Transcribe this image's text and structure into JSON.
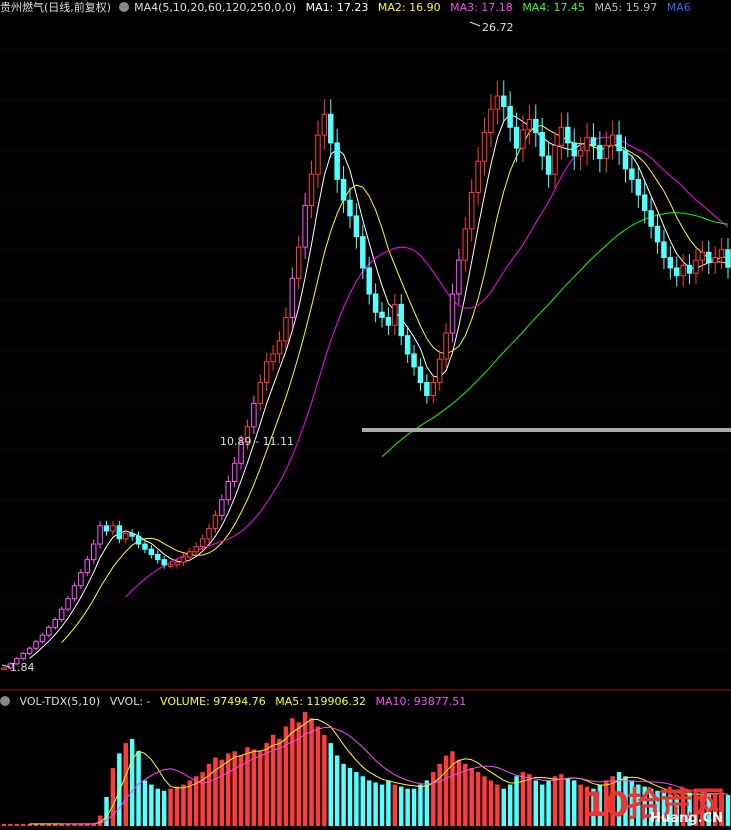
{
  "header": {
    "title": "贵州燃气(日线,前复权)",
    "ma_config": "MA4(5,10,20,60,120,250,0,0)",
    "ma1": "MA1: 17.23",
    "ma2": "MA2: 16.90",
    "ma3": "MA3: 17.18",
    "ma4": "MA4: 17.45",
    "ma5": "MA5: 15.97",
    "ma6": "MA6",
    "colors": {
      "ma1": "#ffffff",
      "ma2": "#ffff00",
      "ma3": "#ff00ff",
      "ma4": "#00ff00",
      "ma5": "#bbbbbb",
      "ma6": "#3366ff"
    }
  },
  "volume_header": {
    "indicator": "VOL-TDX(5,10)",
    "vvol": "VVOL: -",
    "volume": "VOLUME: 97494.76",
    "ma5": "MA5: 119906.32",
    "ma10": "MA10: 93877.51"
  },
  "annotations": {
    "high": "26.72",
    "low": "1.84",
    "gap": "10.89 - 11.11"
  },
  "watermark": {
    "brand": "10拾荒网",
    "domain": "Huang.CN"
  },
  "chart_data": {
    "type": "candlestick",
    "colors": {
      "up": "#ff3b3b",
      "down": "#54ffff",
      "limit_up": "#ff55ff",
      "ma5": "#ffffff",
      "ma10": "#ffff00",
      "ma20": "#ff00ff",
      "ma60": "#00ff00",
      "gapline": "#bbbbbb"
    },
    "price_points": [
      1.84,
      2.0,
      2.2,
      2.4,
      2.6,
      2.85,
      3.1,
      3.4,
      3.7,
      4.1,
      4.5,
      5.0,
      5.5,
      6.0,
      6.6,
      7.3,
      7.1,
      7.3,
      6.8,
      7.0,
      6.9,
      6.6,
      6.4,
      6.2,
      6.0,
      5.8,
      5.8,
      5.9,
      6.1,
      6.3,
      6.5,
      6.8,
      7.2,
      7.7,
      8.3,
      9.0,
      9.7,
      10.5,
      11.1,
      12.0,
      12.8,
      13.6,
      13.9,
      14.4,
      15.3,
      16.8,
      18.0,
      19.6,
      20.8,
      22.3,
      23.1,
      22.0,
      20.6,
      19.8,
      19.2,
      18.4,
      17.2,
      16.2,
      15.5,
      15.3,
      15.0,
      15.8,
      14.6,
      13.9,
      13.4,
      12.8,
      12.3,
      12.8,
      13.7,
      14.7,
      16.2,
      17.5,
      18.7,
      20.1,
      21.3,
      22.4,
      23.3,
      23.8,
      23.4,
      22.6,
      21.8,
      22.5,
      22.9,
      22.4,
      21.5,
      20.8,
      21.9,
      22.6,
      22.0,
      21.5,
      21.7,
      22.2,
      21.9,
      21.4,
      21.9,
      22.3,
      21.7,
      21.0,
      20.6,
      20.0,
      19.4,
      18.8,
      18.2,
      17.6,
      17.2,
      16.9,
      17.3,
      17.0,
      17.5,
      17.8,
      17.4,
      17.6,
      17.9,
      17.23
    ],
    "volume_points": [
      1,
      1,
      1,
      1,
      1,
      1,
      1,
      1,
      1,
      1,
      1,
      1,
      1,
      1,
      1,
      5,
      14,
      28,
      35,
      40,
      42,
      36,
      22,
      20,
      18,
      17,
      18,
      19,
      20,
      22,
      24,
      26,
      30,
      33,
      32,
      35,
      36,
      34,
      38,
      37,
      36,
      40,
      44,
      42,
      48,
      52,
      50,
      55,
      52,
      48,
      44,
      40,
      34,
      30,
      28,
      26,
      24,
      22,
      21,
      20,
      22,
      20,
      19,
      18,
      18,
      20,
      22,
      26,
      30,
      34,
      36,
      32,
      30,
      28,
      26,
      24,
      22,
      20,
      18,
      20,
      24,
      26,
      25,
      22,
      20,
      22,
      24,
      25,
      23,
      22,
      20,
      19,
      18,
      20,
      22,
      24,
      26,
      24,
      22,
      20,
      19,
      18,
      17,
      16,
      15,
      15,
      15,
      16,
      16,
      15,
      15,
      16,
      16,
      15
    ]
  }
}
